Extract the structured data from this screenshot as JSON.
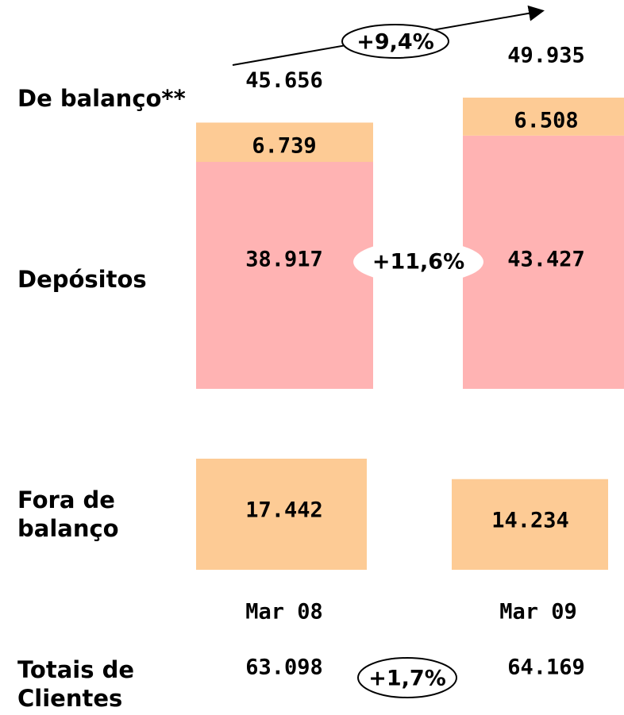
{
  "chart_data": {
    "type": "stacked_bar",
    "categories": [
      "Mar 08",
      "Mar 09"
    ],
    "on_balance": {
      "label": "De balanço**",
      "totals": [
        45656,
        49935
      ],
      "total_labels": [
        "45.656",
        "49.935"
      ],
      "change": "+9,4%"
    },
    "series": [
      {
        "name": "Depósitos",
        "color": "#ffb3b3",
        "values": [
          38917,
          43427
        ],
        "value_labels": [
          "38.917",
          "43.427"
        ],
        "change": "+11,6%"
      },
      {
        "color": "#fdcb95",
        "values": [
          6739,
          6508
        ],
        "value_labels": [
          "6.739",
          "6.508"
        ]
      }
    ],
    "off_balance": {
      "label": "Fora de balanço",
      "color": "#fdcb95",
      "values": [
        17442,
        14234
      ],
      "value_labels": [
        "17.442",
        "14.234"
      ]
    },
    "client_totals": {
      "label": "Totais de Clientes",
      "values": [
        63098,
        64169
      ],
      "value_labels": [
        "63.098",
        "64.169"
      ],
      "change": "+1,7%"
    },
    "change_color": "#1a8a1a"
  }
}
